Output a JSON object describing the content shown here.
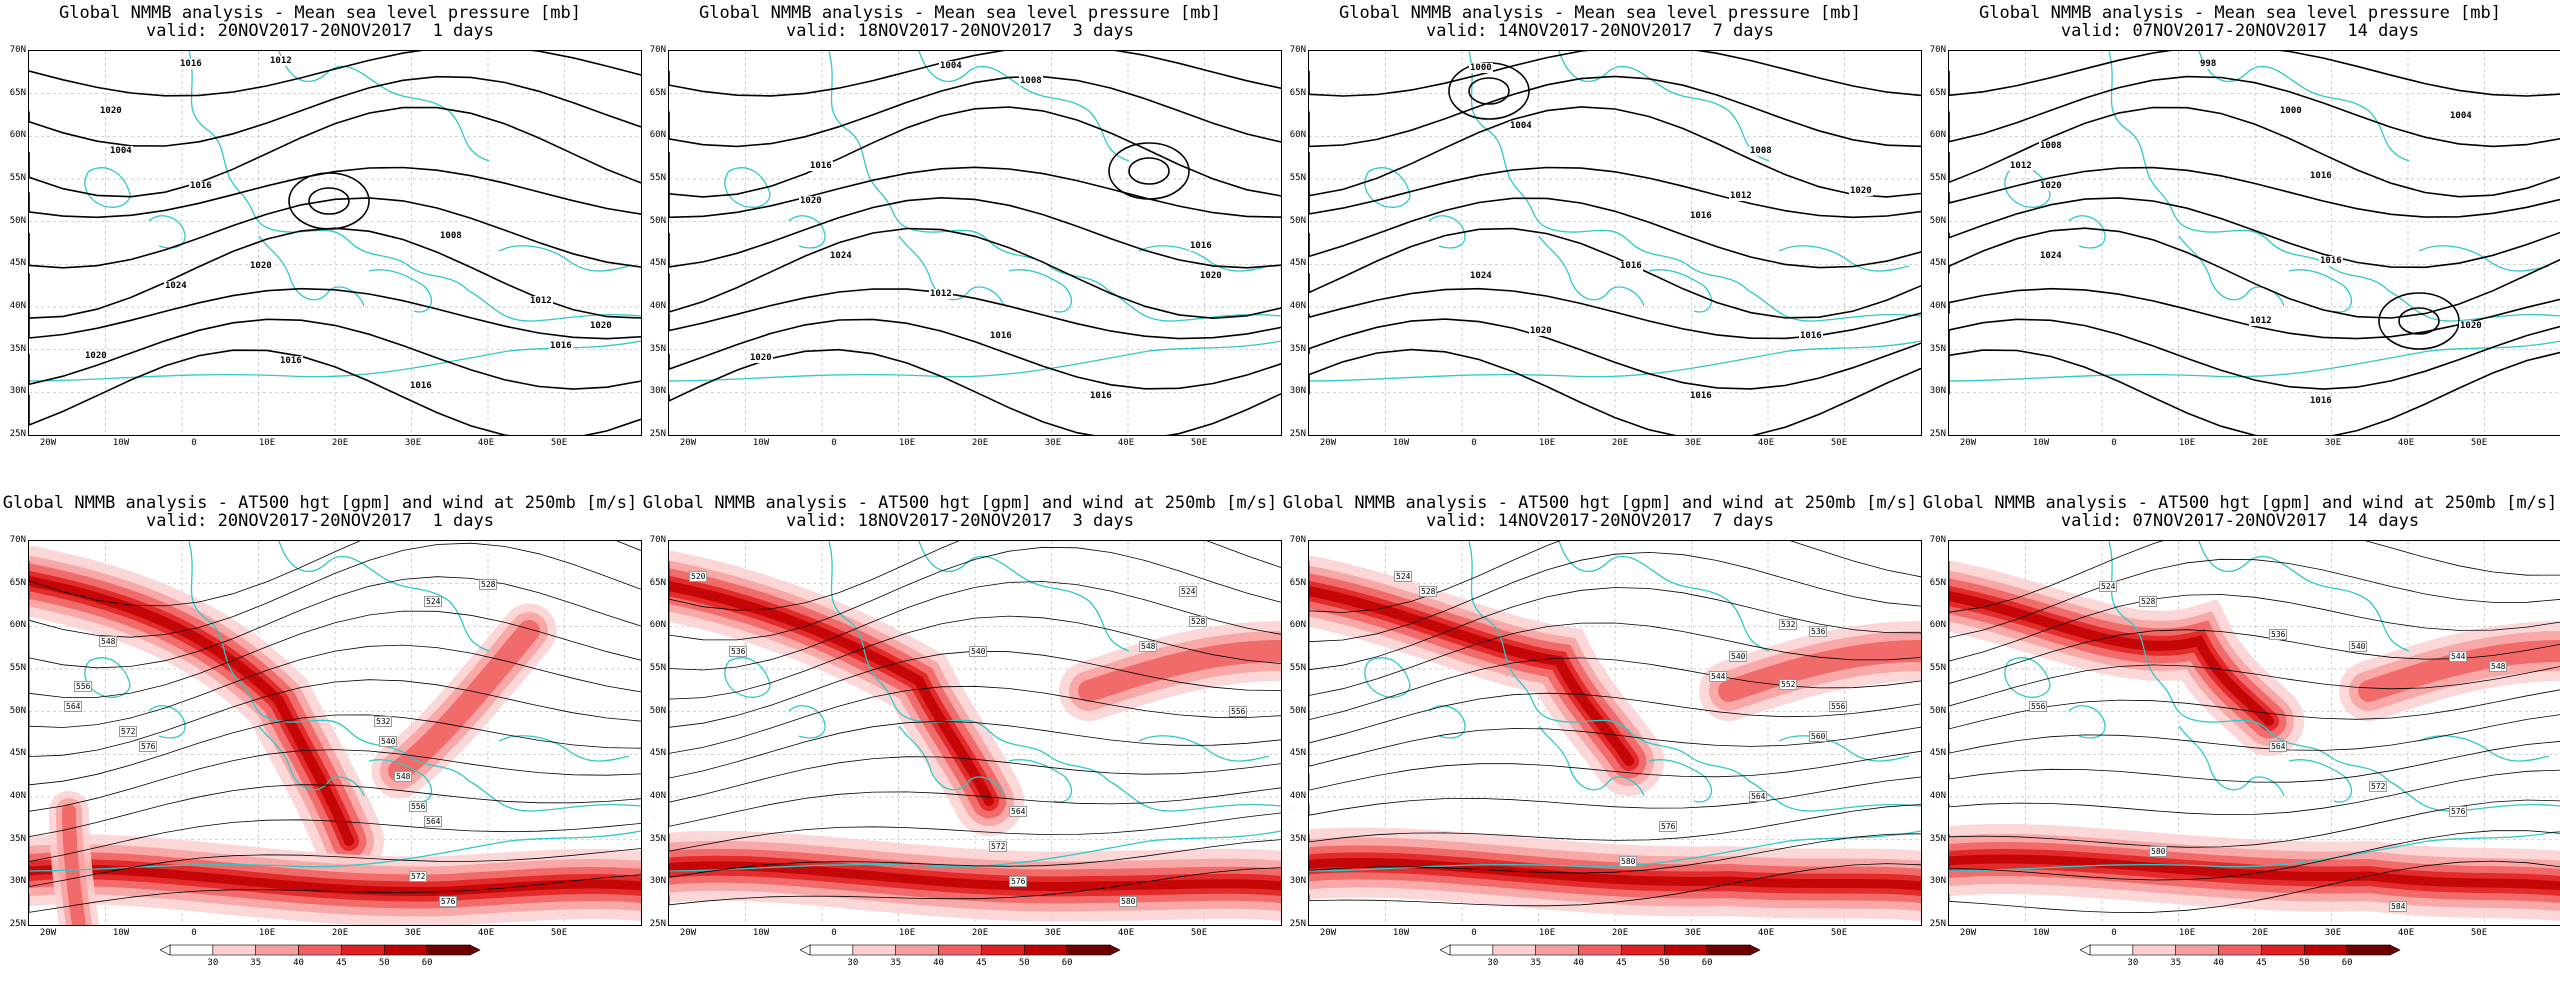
{
  "titles": {
    "mslp_line1": "Global NMMB analysis - Mean sea level pressure [mb]",
    "hgt_line1": "Global NMMB analysis - AT500 hgt [gpm] and wind at 250mb [m/s]"
  },
  "columns": [
    {
      "valid": "valid: 20NOV2017-20NOV2017  1 days"
    },
    {
      "valid": "valid: 18NOV2017-20NOV2017  3 days"
    },
    {
      "valid": "valid: 14NOV2017-20NOV2017  7 days"
    },
    {
      "valid": "valid: 07NOV2017-20NOV2017  14 days"
    }
  ],
  "axes": {
    "lat_labels": [
      "70N",
      "65N",
      "60N",
      "55N",
      "50N",
      "45N",
      "40N",
      "35N",
      "30N",
      "25N"
    ],
    "lon_labels": [
      "20W",
      "10W",
      "0",
      "10E",
      "20E",
      "30E",
      "40E",
      "50E"
    ]
  },
  "mslp_labels": [
    [
      "1016",
      "1012",
      "1020",
      "1004",
      "1016",
      "1024",
      "1020",
      "1020",
      "1008",
      "1012",
      "1016",
      "1016",
      "1016",
      "1020"
    ],
    [
      "1004",
      "1008",
      "1016",
      "1020",
      "1024",
      "1016",
      "1012",
      "1020",
      "1016",
      "1016",
      "1020"
    ],
    [
      "1000",
      "1004",
      "1008",
      "1012",
      "1016",
      "1020",
      "1024",
      "1016",
      "1020",
      "1016",
      "1016"
    ],
    [
      "998",
      "1000",
      "1004",
      "1008",
      "1012",
      "1016",
      "1020",
      "1024",
      "1016",
      "1012",
      "1020",
      "1016"
    ]
  ],
  "hgt_labels": [
    [
      "524",
      "528",
      "548",
      "556",
      "564",
      "572",
      "576",
      "532",
      "540",
      "548",
      "556",
      "564",
      "572",
      "576"
    ],
    [
      "520",
      "524",
      "528",
      "536",
      "540",
      "548",
      "556",
      "564",
      "572",
      "576",
      "580"
    ],
    [
      "524",
      "528",
      "532",
      "536",
      "540",
      "544",
      "552",
      "556",
      "560",
      "564",
      "576",
      "580"
    ],
    [
      "524",
      "528",
      "536",
      "540",
      "544",
      "548",
      "556",
      "564",
      "572",
      "576",
      "580",
      "584"
    ]
  ],
  "colorbar": {
    "ticks": [
      "30",
      "35",
      "40",
      "45",
      "50",
      "60"
    ],
    "colors": [
      "#ffffff",
      "#fcd0d0",
      "#f8a0a0",
      "#f06060",
      "#e02020",
      "#c00000",
      "#700000"
    ]
  }
}
